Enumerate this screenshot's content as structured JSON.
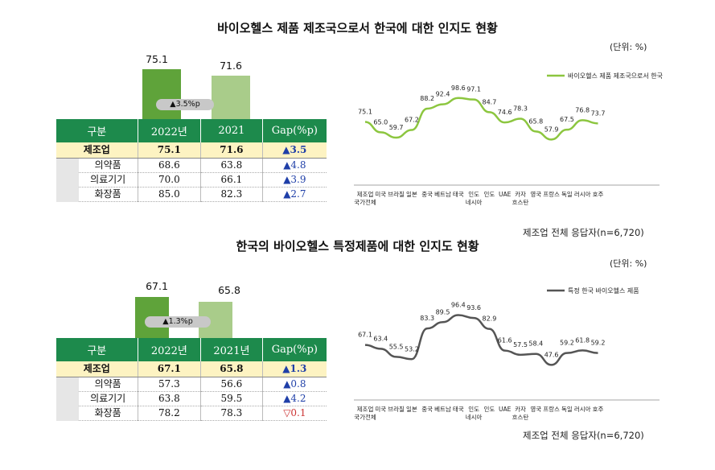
{
  "top": {
    "title": "바이오헬스 제품 제조국으로서 한국에 대한 인지도 현황",
    "unit": "(단위: %)",
    "source": "제조업 전체 응답자(n=6,720)",
    "bars": {
      "v2022": "75.1",
      "v2021": "71.6",
      "gap": "3.5%p"
    },
    "table": {
      "headers": [
        "구분",
        "2022년",
        "2021",
        "Gap(%p)"
      ],
      "main": {
        "name": "제조업",
        "v2022": "75.1",
        "v2021": "71.6",
        "gap": "▲3.5"
      },
      "rows": [
        {
          "name": "의약품",
          "v2022": "68.6",
          "v2021": "63.8",
          "gap": "▲4.8"
        },
        {
          "name": "의료기기",
          "v2022": "70.0",
          "v2021": "66.1",
          "gap": "▲3.9"
        },
        {
          "name": "화장품",
          "v2022": "85.0",
          "v2021": "82.3",
          "gap": "▲2.7"
        }
      ]
    }
  },
  "bottom": {
    "title": "한국의 바이오헬스 특정제품에 대한 인지도 현황",
    "unit": "(단위: %)",
    "source": "제조업 전체 응답자(n=6,720)",
    "bars": {
      "v2022": "67.1",
      "v2021": "65.8",
      "gap": "1.3%p"
    },
    "table": {
      "headers": [
        "구분",
        "2022년",
        "2021년",
        "Gap(%p)"
      ],
      "main": {
        "name": "제조업",
        "v2022": "67.1",
        "v2021": "65.8",
        "gap": "▲1.3"
      },
      "rows": [
        {
          "name": "의약품",
          "v2022": "57.3",
          "v2021": "56.6",
          "gap": "▲0.8"
        },
        {
          "name": "의료기기",
          "v2022": "63.8",
          "v2021": "59.5",
          "gap": "▲4.2"
        },
        {
          "name": "화장품",
          "v2022": "78.2",
          "v2021": "78.3",
          "gap": "▽0.1"
        }
      ]
    }
  },
  "colors": {
    "dark_green": "#1d8a4c",
    "bar2022": "#5fa33a",
    "bar2021": "#a9cc8a",
    "line_top": "#8cc63f",
    "line_bottom": "#555555",
    "highlight": "#fdf3c2"
  },
  "chart_data": [
    {
      "type": "bar",
      "categories": [
        "2022",
        "2021"
      ],
      "values": [
        75.1,
        71.6
      ]
    },
    {
      "type": "line",
      "legend": "top-right",
      "categories": [
        "제조업 국가전체",
        "미국",
        "브라질",
        "일본",
        "중국",
        "베트남",
        "태국",
        "인도 네시아",
        "인도",
        "UAE",
        "카자 흐스탄",
        "영국",
        "프랑스",
        "독일",
        "러시아",
        "호주"
      ],
      "series": [
        {
          "name": "바이오헬스 제품 제조국으로서 한국",
          "values": [
            75.1,
            65.0,
            59.7,
            67.2,
            88.2,
            92.4,
            98.6,
            97.1,
            84.7,
            74.6,
            78.3,
            65.8,
            57.9,
            67.5,
            76.8,
            73.7
          ]
        }
      ]
    },
    {
      "type": "bar",
      "categories": [
        "2022",
        "2021"
      ],
      "values": [
        67.1,
        65.8
      ]
    },
    {
      "type": "line",
      "legend": "top-right",
      "categories": [
        "제조업 국가전체",
        "미국",
        "브라질",
        "일본",
        "중국",
        "베트남",
        "태국",
        "인도 네시아",
        "인도",
        "UAE",
        "카자 흐스탄",
        "영국",
        "프랑스",
        "독일",
        "러시아",
        "호주"
      ],
      "series": [
        {
          "name": "특정 한국 바이오헬스 제품",
          "values": [
            67.1,
            63.4,
            55.5,
            53.2,
            83.3,
            89.5,
            96.4,
            93.6,
            82.9,
            61.6,
            57.5,
            58.4,
            47.6,
            59.2,
            61.8,
            59.2
          ]
        }
      ]
    }
  ]
}
